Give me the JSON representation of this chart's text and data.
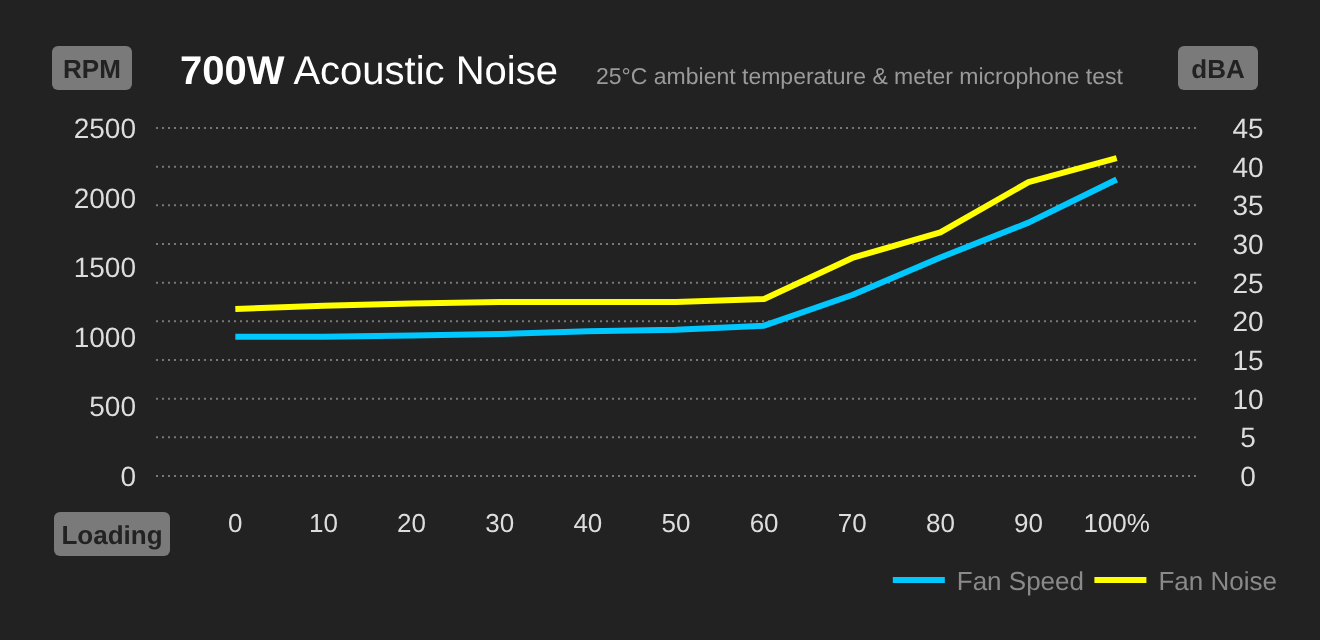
{
  "chart_data": {
    "type": "line",
    "title": "700W Acoustic Noise",
    "subtitle": "25°C ambient temperature & meter microphone test",
    "xlabel": "Loading",
    "ylabel": "RPM",
    "y2label": "dBA",
    "x": [
      0,
      10,
      20,
      30,
      40,
      50,
      60,
      70,
      80,
      90,
      100
    ],
    "xlim": [
      -9,
      109
    ],
    "xticks": [
      0,
      10,
      20,
      30,
      40,
      50,
      60,
      70,
      80,
      90,
      {
        "value": 100,
        "label": "100%"
      }
    ],
    "ylim": [
      0,
      2500
    ],
    "yticks": [
      0,
      500,
      1000,
      1500,
      2000,
      2500
    ],
    "y2lim": [
      0,
      45
    ],
    "y2ticks": [
      0,
      5,
      10,
      15,
      20,
      25,
      30,
      35,
      40,
      45
    ],
    "grid": true,
    "legend": "bottom right",
    "marker": "none",
    "line_style": "solid",
    "series": [
      {
        "name": "Fan Speed",
        "color": "#00c8ff",
        "values": [
          1000,
          1000,
          1010,
          1020,
          1040,
          1050,
          1080,
          1300,
          1570,
          1820,
          2130
        ]
      },
      {
        "name": "Fan Noise",
        "color": "#ffff00",
        "axis": "y2",
        "values": [
          21.6,
          22,
          22.3,
          22.5,
          22.5,
          22.5,
          22.9,
          28.2,
          31.5,
          38,
          41.1
        ]
      }
    ]
  }
}
